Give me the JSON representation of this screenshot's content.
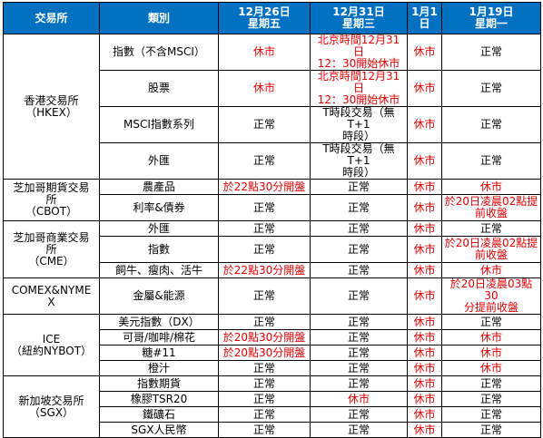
{
  "table": {
    "columns": [
      {
        "lines": [
          "交易所"
        ]
      },
      {
        "lines": [
          "類別"
        ]
      },
      {
        "lines": [
          "12月26日",
          "星期五"
        ]
      },
      {
        "lines": [
          "12月31日",
          "星期三"
        ]
      },
      {
        "lines": [
          "1月1",
          "日"
        ]
      },
      {
        "lines": [
          "1月19日",
          "星期一"
        ]
      }
    ],
    "exchanges": [
      {
        "name": [
          "香港交易所",
          "（HKEX）"
        ],
        "rows": [
          {
            "category": "指數（不含MSCI）",
            "cells": [
              {
                "text": [
                  "休市"
                ],
                "color": "red"
              },
              {
                "text": [
                  "北京時間12月31日",
                  "12：30開始休市"
                ],
                "color": "red"
              },
              {
                "text": [
                  "休市"
                ],
                "color": "red"
              },
              {
                "text": [
                  "正常"
                ],
                "color": "black"
              }
            ]
          },
          {
            "category": "股票",
            "cells": [
              {
                "text": [
                  "休市"
                ],
                "color": "red"
              },
              {
                "text": [
                  "北京時間12月31日",
                  "12：30開始休市"
                ],
                "color": "red"
              },
              {
                "text": [
                  "休市"
                ],
                "color": "red"
              },
              {
                "text": [
                  "正常"
                ],
                "color": "black"
              }
            ]
          },
          {
            "category": "MSCI指數系列",
            "cells": [
              {
                "text": [
                  "正常"
                ],
                "color": "black"
              },
              {
                "text": [
                  "T時段交易（無T+1",
                  "時段）"
                ],
                "color": "black"
              },
              {
                "text": [
                  "休市"
                ],
                "color": "red"
              },
              {
                "text": [
                  "正常"
                ],
                "color": "black"
              }
            ]
          },
          {
            "category": "外匯",
            "cells": [
              {
                "text": [
                  "正常"
                ],
                "color": "black"
              },
              {
                "text": [
                  "T時段交易（無T+1",
                  "時段）"
                ],
                "color": "black"
              },
              {
                "text": [
                  "休市"
                ],
                "color": "red"
              },
              {
                "text": [
                  "正常"
                ],
                "color": "black"
              }
            ]
          }
        ]
      },
      {
        "name": [
          "芝加哥期貨交易",
          "所",
          "（CBOT）"
        ],
        "rows": [
          {
            "category": "農產品",
            "cells": [
              {
                "text": [
                  "於22點30分開盤"
                ],
                "color": "red"
              },
              {
                "text": [
                  "正常"
                ],
                "color": "black"
              },
              {
                "text": [
                  "休市"
                ],
                "color": "red"
              },
              {
                "text": [
                  "休市"
                ],
                "color": "red"
              }
            ]
          },
          {
            "category": "利率&債券",
            "cells": [
              {
                "text": [
                  "正常"
                ],
                "color": "black"
              },
              {
                "text": [
                  "正常"
                ],
                "color": "black"
              },
              {
                "text": [
                  "休市"
                ],
                "color": "red"
              },
              {
                "text": [
                  "於20日凌晨02點提",
                  "前收盤"
                ],
                "color": "red"
              }
            ]
          }
        ]
      },
      {
        "name": [
          "芝加哥商業交易",
          "所",
          "（CME）"
        ],
        "rows": [
          {
            "category": "外匯",
            "cells": [
              {
                "text": [
                  "正常"
                ],
                "color": "black"
              },
              {
                "text": [
                  "正常"
                ],
                "color": "black"
              },
              {
                "text": [
                  "休市"
                ],
                "color": "red"
              },
              {
                "text": [
                  "正常"
                ],
                "color": "black"
              }
            ]
          },
          {
            "category": "指數",
            "cells": [
              {
                "text": [
                  "正常"
                ],
                "color": "black"
              },
              {
                "text": [
                  "正常"
                ],
                "color": "black"
              },
              {
                "text": [
                  "休市"
                ],
                "color": "red"
              },
              {
                "text": [
                  "於20日凌晨02點提",
                  "前收盤"
                ],
                "color": "red"
              }
            ]
          },
          {
            "category": "飼牛、瘦肉、活牛",
            "cells": [
              {
                "text": [
                  "於22點30分開盤"
                ],
                "color": "red"
              },
              {
                "text": [
                  "正常"
                ],
                "color": "black"
              },
              {
                "text": [
                  "休市"
                ],
                "color": "red"
              },
              {
                "text": [
                  "休市"
                ],
                "color": "red"
              }
            ]
          }
        ]
      },
      {
        "name": [
          "COMEX&NYME",
          "X"
        ],
        "rows": [
          {
            "category": "金屬&能源",
            "cells": [
              {
                "text": [
                  "正常"
                ],
                "color": "black"
              },
              {
                "text": [
                  "正常"
                ],
                "color": "black"
              },
              {
                "text": [
                  "休市"
                ],
                "color": "red"
              },
              {
                "text": [
                  "於20日凌晨03點30",
                  "分提前收盤"
                ],
                "color": "red"
              }
            ]
          }
        ]
      },
      {
        "name": [
          "ICE",
          "（紐約NYBOT）"
        ],
        "rows": [
          {
            "category": "美元指數（DX）",
            "cells": [
              {
                "text": [
                  "正常"
                ],
                "color": "black"
              },
              {
                "text": [
                  "正常"
                ],
                "color": "black"
              },
              {
                "text": [
                  "休市"
                ],
                "color": "red"
              },
              {
                "text": [
                  "正常"
                ],
                "color": "black"
              }
            ]
          },
          {
            "category": "可哥/咖啡/棉花",
            "cells": [
              {
                "text": [
                  "於20點30分開盤"
                ],
                "color": "red"
              },
              {
                "text": [
                  "正常"
                ],
                "color": "black"
              },
              {
                "text": [
                  "休市"
                ],
                "color": "red"
              },
              {
                "text": [
                  "休市"
                ],
                "color": "red"
              }
            ]
          },
          {
            "category": "糖#11",
            "cells": [
              {
                "text": [
                  "於20點30分開盤"
                ],
                "color": "red"
              },
              {
                "text": [
                  "正常"
                ],
                "color": "black"
              },
              {
                "text": [
                  "休市"
                ],
                "color": "red"
              },
              {
                "text": [
                  "休市"
                ],
                "color": "red"
              }
            ]
          },
          {
            "category": "橙汁",
            "cells": [
              {
                "text": [
                  "正常"
                ],
                "color": "black"
              },
              {
                "text": [
                  "正常"
                ],
                "color": "black"
              },
              {
                "text": [
                  "休市"
                ],
                "color": "red"
              },
              {
                "text": [
                  "休市"
                ],
                "color": "red"
              }
            ]
          }
        ]
      },
      {
        "name": [
          "新加坡交易所",
          "（SGX）"
        ],
        "rows": [
          {
            "category": "指數期貨",
            "cells": [
              {
                "text": [
                  "正常"
                ],
                "color": "black"
              },
              {
                "text": [
                  "正常"
                ],
                "color": "black"
              },
              {
                "text": [
                  "休市"
                ],
                "color": "red"
              },
              {
                "text": [
                  "正常"
                ],
                "color": "black"
              }
            ]
          },
          {
            "category": "橡膠TSR20",
            "cells": [
              {
                "text": [
                  "正常"
                ],
                "color": "black"
              },
              {
                "text": [
                  "休市"
                ],
                "color": "red"
              },
              {
                "text": [
                  "休市"
                ],
                "color": "red"
              },
              {
                "text": [
                  "正常"
                ],
                "color": "black"
              }
            ]
          },
          {
            "category": "鐵礦石",
            "cells": [
              {
                "text": [
                  "正常"
                ],
                "color": "black"
              },
              {
                "text": [
                  "正常"
                ],
                "color": "black"
              },
              {
                "text": [
                  "休市"
                ],
                "color": "red"
              },
              {
                "text": [
                  "正常"
                ],
                "color": "black"
              }
            ]
          },
          {
            "category": "SGX人民幣",
            "cells": [
              {
                "text": [
                  "正常"
                ],
                "color": "black"
              },
              {
                "text": [
                  "正常"
                ],
                "color": "black"
              },
              {
                "text": [
                  "休市"
                ],
                "color": "red"
              },
              {
                "text": [
                  "正常"
                ],
                "color": "black"
              }
            ]
          }
        ]
      }
    ]
  },
  "colors": {
    "header_bg": "#0070c0",
    "header_text": "#ffffff",
    "closed_text": "#e00000",
    "normal_text": "#000000",
    "border": "#000000"
  }
}
